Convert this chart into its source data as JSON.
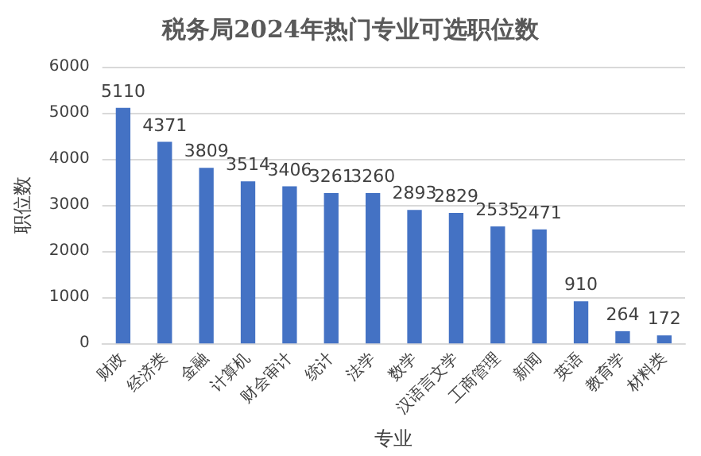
{
  "chart_data": {
    "type": "bar",
    "title": "税务局2024年热门专业可选职位数",
    "xlabel": "专业",
    "ylabel": "职位数",
    "categories": [
      "财政",
      "经济类",
      "金融",
      "计算机",
      "财会审计",
      "统计",
      "法学",
      "数学",
      "汉语言文学",
      "工商管理",
      "新闻",
      "英语",
      "教育学",
      "材料类"
    ],
    "values": [
      5110,
      4371,
      3809,
      3514,
      3406,
      3261,
      3260,
      2893,
      2829,
      2535,
      2471,
      910,
      264,
      172
    ],
    "color": "#4472c4",
    "ylim": [
      0,
      6000
    ],
    "yticks": [
      0,
      1000,
      2000,
      3000,
      4000,
      5000,
      6000
    ],
    "grid": "y",
    "data_labels": true
  }
}
